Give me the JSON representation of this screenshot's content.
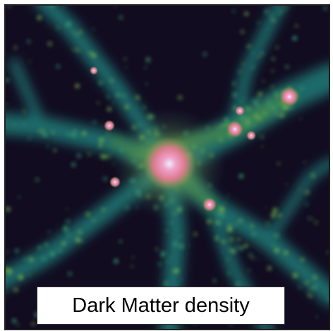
{
  "label": "Dark Matter density"
}
